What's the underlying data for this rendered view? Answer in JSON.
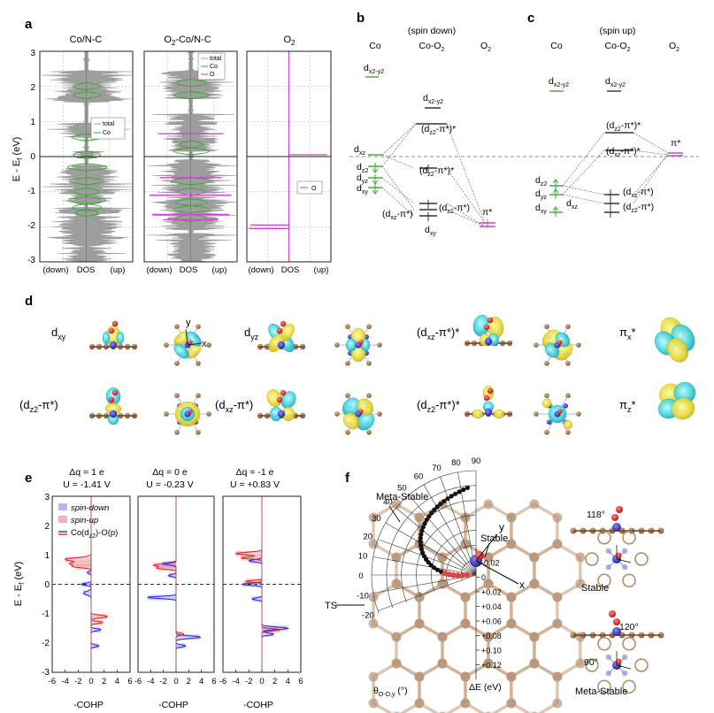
{
  "panels": {
    "a": {
      "letter": "a",
      "ylabel": "E - E",
      "ylabel_sub": "f",
      "ylabel_unit": " (eV)",
      "yticks": [
        "3",
        "2",
        "1",
        "0",
        "-1",
        "-2",
        "-3"
      ],
      "subplots": [
        {
          "title": "Co/N-C",
          "title_sub": "",
          "xlabels": [
            "(down)",
            "DOS",
            "(up)"
          ],
          "legend": [
            "total",
            "Co"
          ]
        },
        {
          "title": "O",
          "title_sub": "2",
          "title_rest": "-Co/N-C",
          "xlabels": [
            "(down)",
            "DOS",
            "(up)"
          ],
          "legend": [
            "total",
            "Co",
            "O"
          ]
        },
        {
          "title": "O",
          "title_sub": "2",
          "title_rest": "",
          "xlabels": [
            "(down)",
            "DOS",
            "(up)"
          ],
          "legend": [
            "O"
          ]
        }
      ],
      "colors": {
        "total": "#9e9e9e",
        "co": "#3aa832",
        "o": "#cc44cc"
      }
    },
    "b": {
      "letter": "b",
      "spin": "(spin down)",
      "cols": [
        "Co",
        "Co-O",
        "O"
      ],
      "levels": {
        "dx2y2": "d",
        "dx2y2_sub": "x2-y2",
        "dxz": "d",
        "dxz_sub": "xz",
        "dz2": "d",
        "dz2_sub": "z2",
        "dyz": "d",
        "dyz_sub": "yz",
        "dxy": "d",
        "dxy_sub": "xy",
        "co_dx2y2": "d",
        "co_dx2y2_sub": "x2-y2",
        "dz2piz": "(d",
        "dz2piz_sub": "z2",
        "dz2piz_rest": "-π*)*",
        "dzpiz": "(d",
        "dzpiz_sub": "z2",
        "dzpiz_rest": "-π*)*",
        "dxzpix": "(d",
        "dxzpix_sub": "xz",
        "dxzpix_rest": "-π*)",
        "dz2piz2": "(d",
        "dz2piz2_sub": "z2",
        "dz2piz2_rest": "-π*)",
        "dxy_low": "d",
        "dxy_low_sub": "xy",
        "pistar": "π*"
      }
    },
    "c": {
      "letter": "c",
      "spin": "(spin up)",
      "cols": [
        "Co",
        "Co-O",
        "O"
      ],
      "levels": {
        "dx2y2": "d",
        "dx2y2_sub": "x2-y2",
        "co_dx2y2": "d",
        "co_dx2y2_sub": "x2-y2",
        "dz2piz": "(d",
        "dz2piz_sub": "z2",
        "dz2piz_rest": "-π*)*",
        "dxzpix": "(d",
        "dxzpix_sub": "xz",
        "dxzpix_rest": "-π*)*",
        "pistar": "π*",
        "dz2": "d",
        "dz2_sub": "z2",
        "dyz": "d",
        "dyz_sub": "yz",
        "dxy": "d",
        "dxy_sub": "xy",
        "dxz": "d",
        "dxz_sub": "xz",
        "low1": "(d",
        "low1_sub": "xz",
        "low1_rest": "-π*)",
        "low2": "(d",
        "low2_sub": "z2",
        "low2_rest": "-π*)"
      }
    },
    "d": {
      "letter": "d",
      "row1": [
        {
          "main": "d",
          "sub": "xy",
          "rest": ""
        },
        {
          "main": "d",
          "sub": "yz",
          "rest": ""
        },
        {
          "main": "(d",
          "sub": "xz",
          "rest": "-π*)*"
        },
        {
          "main": "π",
          "sub": "x",
          "rest": "*"
        }
      ],
      "row2": [
        {
          "main": "(d",
          "sub": "z2",
          "rest": "-π*)"
        },
        {
          "main": "(d",
          "sub": "xz",
          "rest": "-π*)"
        },
        {
          "main": "(d",
          "sub": "z2",
          "rest": "-π*)*"
        },
        {
          "main": "π",
          "sub": "z",
          "rest": "*"
        }
      ],
      "axis_y": "y",
      "axis_x": "x"
    },
    "e": {
      "letter": "e",
      "ylabel": "E - E",
      "ylabel_sub": "f",
      "ylabel_unit": " (eV)",
      "yticks": [
        "3",
        "2",
        "1",
        "0",
        "-1",
        "-2",
        "-3"
      ],
      "xticks": [
        "-6",
        "-4",
        "-2",
        "0",
        "2",
        "4",
        "6"
      ],
      "xlabel": "-COHP",
      "subplots": [
        {
          "dq": "Δq = 1 e",
          "u": "U = -1.41 V"
        },
        {
          "dq": "Δq = 0 e",
          "u": "U = -0.23 V"
        },
        {
          "dq": "Δq = -1 e",
          "u": "U = +0.83 V"
        }
      ],
      "legend": [
        "spin-down",
        "spin-up",
        "Co(d",
        ")-O(p)"
      ],
      "legend_sub": "z2",
      "colors": {
        "down": "#7b7bff",
        "up": "#f08080",
        "total": "#2222dd",
        "red": "#dd2222"
      }
    },
    "f": {
      "letter": "f",
      "meta_stable": "Meta-Stable",
      "stable": "Stable",
      "ts": "TS",
      "theta_label": "θ",
      "theta_sub": "O-O,y",
      "theta_unit": " (°)",
      "de_label": "ΔE (eV)",
      "angle_ticks": [
        "90",
        "80",
        "70",
        "60",
        "50",
        "40",
        "30",
        "20",
        "10",
        "0",
        "-10",
        "-20"
      ],
      "de_ticks": [
        "-0.02",
        "0",
        "+0.02",
        "+0.04",
        "+0.06",
        "+0.08",
        "+0.10",
        "+0.12"
      ],
      "axis_y": "y",
      "axis_x": "x",
      "inset_angle1": "118°",
      "inset_stable": "Stable",
      "inset_angle2": "120°",
      "inset_angle3": "90°",
      "inset_meta": "Meta-Stable"
    }
  }
}
